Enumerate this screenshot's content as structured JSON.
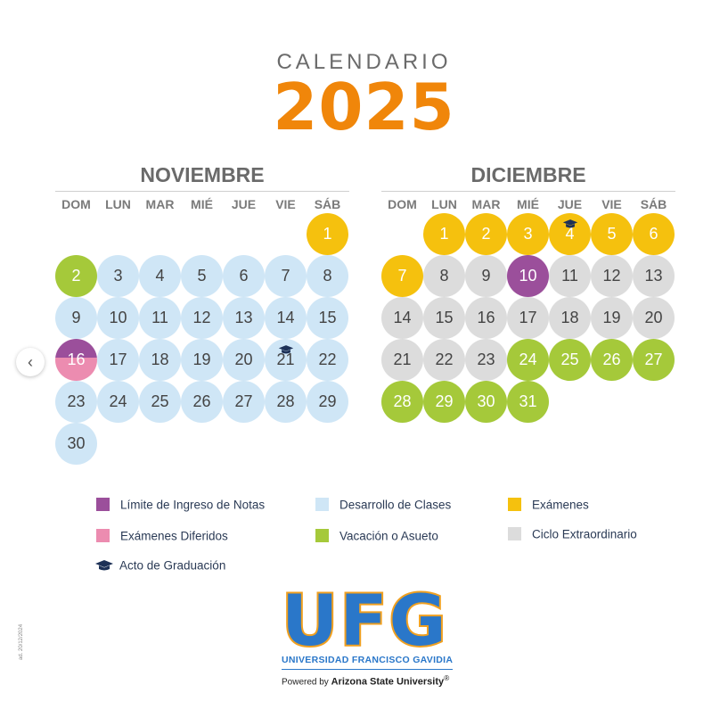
{
  "header": {
    "title_small": "CALENDARIO",
    "year": "2025"
  },
  "weekdays": [
    "DOM",
    "LUN",
    "MAR",
    "MIÉ",
    "JUE",
    "VIE",
    "SÁB"
  ],
  "months": [
    {
      "name": "NOVIEMBRE",
      "days": [
        {
          "d": "1",
          "c": "examenes",
          "col": 6,
          "row": 0
        },
        {
          "d": "2",
          "c": "vacacion",
          "col": 0,
          "row": 1
        },
        {
          "d": "3",
          "c": "clases",
          "col": 1,
          "row": 1
        },
        {
          "d": "4",
          "c": "clases",
          "col": 2,
          "row": 1
        },
        {
          "d": "5",
          "c": "clases",
          "col": 3,
          "row": 1
        },
        {
          "d": "6",
          "c": "clases",
          "col": 4,
          "row": 1
        },
        {
          "d": "7",
          "c": "clases",
          "col": 5,
          "row": 1
        },
        {
          "d": "8",
          "c": "clases",
          "col": 6,
          "row": 1
        },
        {
          "d": "9",
          "c": "clases",
          "col": 0,
          "row": 2
        },
        {
          "d": "10",
          "c": "clases",
          "col": 1,
          "row": 2
        },
        {
          "d": "11",
          "c": "clases",
          "col": 2,
          "row": 2
        },
        {
          "d": "12",
          "c": "clases",
          "col": 3,
          "row": 2
        },
        {
          "d": "13",
          "c": "clases",
          "col": 4,
          "row": 2
        },
        {
          "d": "14",
          "c": "clases",
          "col": 5,
          "row": 2
        },
        {
          "d": "15",
          "c": "clases",
          "col": 6,
          "row": 2
        },
        {
          "d": "16",
          "c": "diferidos",
          "col": 0,
          "row": 3
        },
        {
          "d": "17",
          "c": "clases",
          "col": 1,
          "row": 3
        },
        {
          "d": "18",
          "c": "clases",
          "col": 2,
          "row": 3
        },
        {
          "d": "19",
          "c": "clases",
          "col": 3,
          "row": 3
        },
        {
          "d": "20",
          "c": "clases",
          "col": 4,
          "row": 3
        },
        {
          "d": "21",
          "c": "clases",
          "col": 5,
          "row": 3,
          "cap": true
        },
        {
          "d": "22",
          "c": "clases",
          "col": 6,
          "row": 3
        },
        {
          "d": "23",
          "c": "clases",
          "col": 0,
          "row": 4
        },
        {
          "d": "24",
          "c": "clases",
          "col": 1,
          "row": 4
        },
        {
          "d": "25",
          "c": "clases",
          "col": 2,
          "row": 4
        },
        {
          "d": "26",
          "c": "clases",
          "col": 3,
          "row": 4
        },
        {
          "d": "27",
          "c": "clases",
          "col": 4,
          "row": 4
        },
        {
          "d": "28",
          "c": "clases",
          "col": 5,
          "row": 4
        },
        {
          "d": "29",
          "c": "clases",
          "col": 6,
          "row": 4
        },
        {
          "d": "30",
          "c": "clases",
          "col": 0,
          "row": 5
        }
      ]
    },
    {
      "name": "DICIEMBRE",
      "days": [
        {
          "d": "1",
          "c": "examenes",
          "col": 1,
          "row": 0
        },
        {
          "d": "2",
          "c": "examenes",
          "col": 2,
          "row": 0
        },
        {
          "d": "3",
          "c": "examenes",
          "col": 3,
          "row": 0
        },
        {
          "d": "4",
          "c": "examenes",
          "col": 4,
          "row": 0,
          "cap": true
        },
        {
          "d": "5",
          "c": "examenes",
          "col": 5,
          "row": 0
        },
        {
          "d": "6",
          "c": "examenes",
          "col": 6,
          "row": 0
        },
        {
          "d": "7",
          "c": "examenes",
          "col": 0,
          "row": 1
        },
        {
          "d": "8",
          "c": "ciclo",
          "col": 1,
          "row": 1
        },
        {
          "d": "9",
          "c": "ciclo",
          "col": 2,
          "row": 1
        },
        {
          "d": "10",
          "c": "limite",
          "col": 3,
          "row": 1
        },
        {
          "d": "11",
          "c": "ciclo",
          "col": 4,
          "row": 1
        },
        {
          "d": "12",
          "c": "ciclo",
          "col": 5,
          "row": 1
        },
        {
          "d": "13",
          "c": "ciclo",
          "col": 6,
          "row": 1
        },
        {
          "d": "14",
          "c": "ciclo",
          "col": 0,
          "row": 2
        },
        {
          "d": "15",
          "c": "ciclo",
          "col": 1,
          "row": 2
        },
        {
          "d": "16",
          "c": "ciclo",
          "col": 2,
          "row": 2
        },
        {
          "d": "17",
          "c": "ciclo",
          "col": 3,
          "row": 2
        },
        {
          "d": "18",
          "c": "ciclo",
          "col": 4,
          "row": 2
        },
        {
          "d": "19",
          "c": "ciclo",
          "col": 5,
          "row": 2
        },
        {
          "d": "20",
          "c": "ciclo",
          "col": 6,
          "row": 2
        },
        {
          "d": "21",
          "c": "ciclo",
          "col": 0,
          "row": 3
        },
        {
          "d": "22",
          "c": "ciclo",
          "col": 1,
          "row": 3
        },
        {
          "d": "23",
          "c": "ciclo",
          "col": 2,
          "row": 3
        },
        {
          "d": "24",
          "c": "vacacion",
          "col": 3,
          "row": 3
        },
        {
          "d": "25",
          "c": "vacacion",
          "col": 4,
          "row": 3
        },
        {
          "d": "26",
          "c": "vacacion",
          "col": 5,
          "row": 3
        },
        {
          "d": "27",
          "c": "vacacion",
          "col": 6,
          "row": 3
        },
        {
          "d": "28",
          "c": "vacacion",
          "col": 0,
          "row": 4
        },
        {
          "d": "29",
          "c": "vacacion",
          "col": 1,
          "row": 4
        },
        {
          "d": "30",
          "c": "vacacion",
          "col": 2,
          "row": 4
        },
        {
          "d": "31",
          "c": "vacacion",
          "col": 3,
          "row": 4
        }
      ]
    }
  ],
  "legend": {
    "limite": "Límite de Ingreso de Notas",
    "diferidos": "Exámenes Diferidos",
    "graduacion": "Acto de Graduación",
    "clases": "Desarrollo de Clases",
    "vacacion": "Vacación o Asueto",
    "examenes": "Exámenes",
    "ciclo": "Ciclo Extraordinario"
  },
  "colors": {
    "clases": "#cfe6f6",
    "examenes": "#f5c10e",
    "vacacion": "#a5c93a",
    "ciclo": "#dcdcdc",
    "limite": "#9b4f9b",
    "diferidos": "#ec8cb0",
    "graduacion_icon": "#1d3157"
  },
  "logo": {
    "letters": "UFG",
    "name": "UNIVERSIDAD FRANCISCO GAVIDIA",
    "powered_prefix": "Powered by ",
    "powered_by": "Arizona State University",
    "registered": "®"
  },
  "side_note": "ad. 20/12/2024",
  "nav": {
    "prev_icon": "chevron-left-icon",
    "prev_glyph": "‹"
  }
}
